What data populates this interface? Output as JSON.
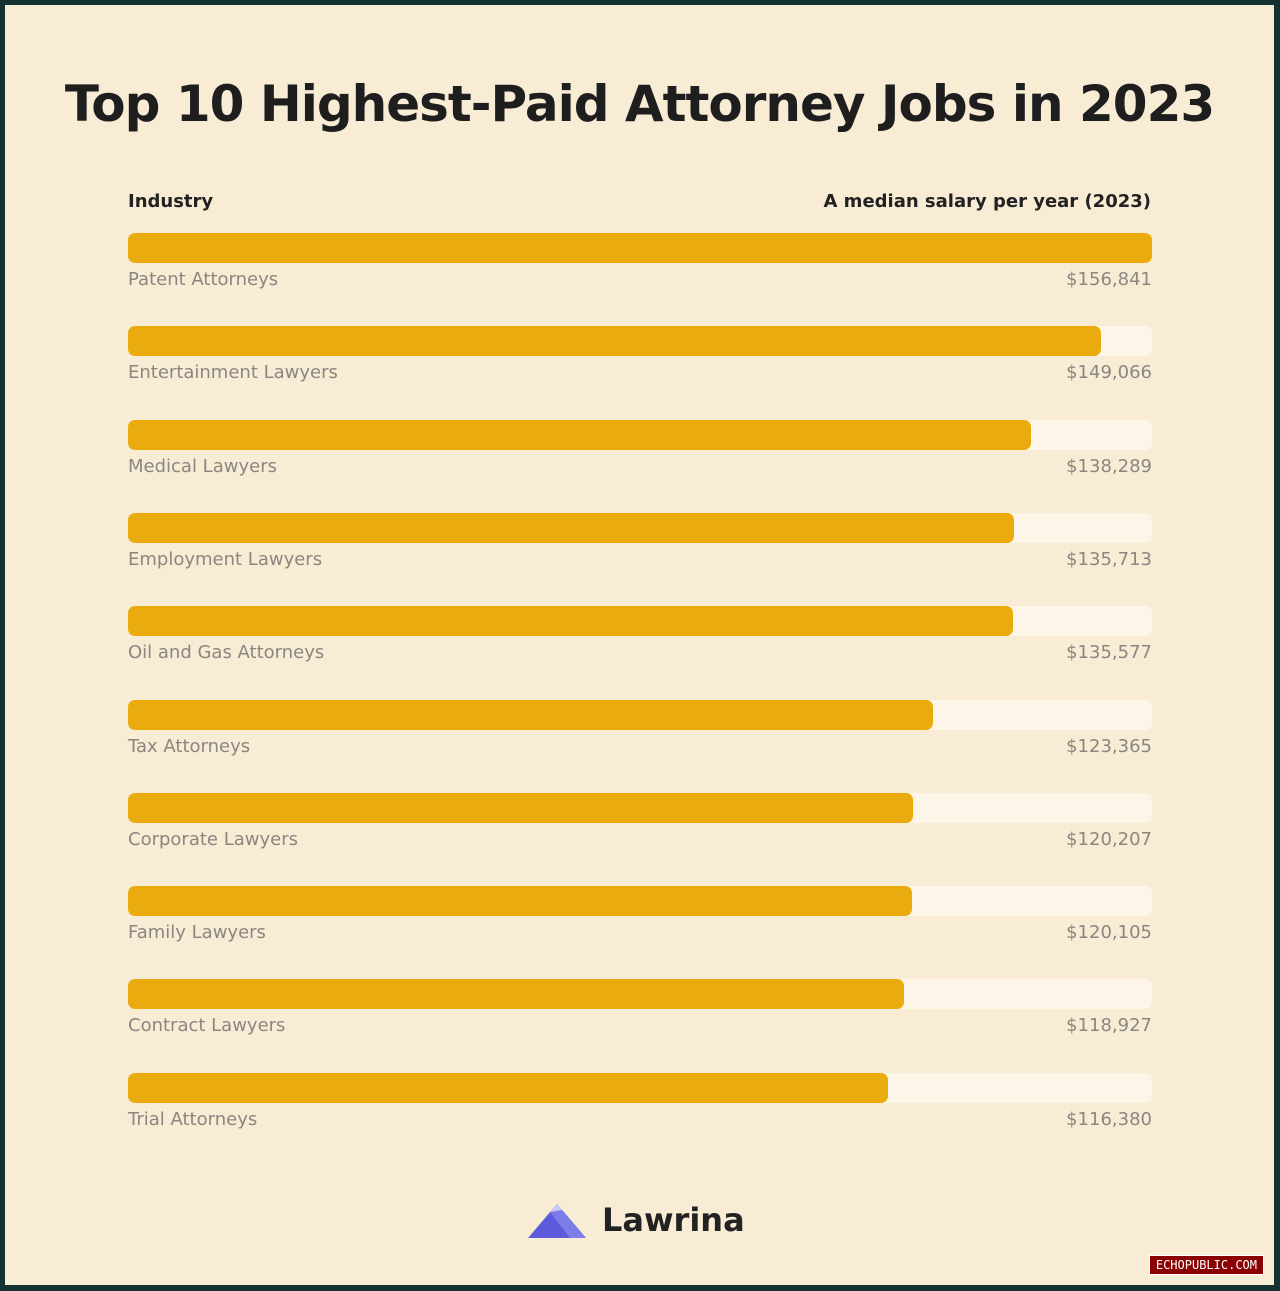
{
  "page": {
    "colors": {
      "background": "#f8ecd5",
      "frame": "#143232",
      "bar_fill": "#e9ab0e",
      "bar_track": "#fdf6e8",
      "label_text": "#8a8680",
      "title_text": "#1e1e1e",
      "logo": "#5b5bdc"
    }
  },
  "chart_data": {
    "type": "bar",
    "orientation": "horizontal",
    "title": "Top 10 Highest-Paid Attorney Jobs in 2023",
    "category_header": "Industry",
    "value_header": "A median salary per year (2023)",
    "categories": [
      "Patent Attorneys",
      "Entertainment Lawyers",
      "Medical Lawyers",
      "Employment Lawyers",
      "Oil and Gas Attorneys",
      "Tax Attorneys",
      "Corporate Lawyers",
      "Family Lawyers",
      "Contract Lawyers",
      "Trial Attorneys"
    ],
    "values": [
      156841,
      149066,
      138289,
      135713,
      135577,
      123365,
      120207,
      120105,
      118927,
      116380
    ],
    "value_labels": [
      "$156,841",
      "$149,066",
      "$138,289",
      "$135,713",
      "$135,577",
      "$123,365",
      "$120,207",
      "$120,105",
      "$118,927",
      "$116,380"
    ],
    "xlim": [
      0,
      156841
    ],
    "grid": false,
    "legend": "none"
  },
  "brand": {
    "name": "Lawrina",
    "icon": "lawrina-logo-icon"
  },
  "watermark": {
    "text": "ECHOPUBLIC.COM"
  }
}
